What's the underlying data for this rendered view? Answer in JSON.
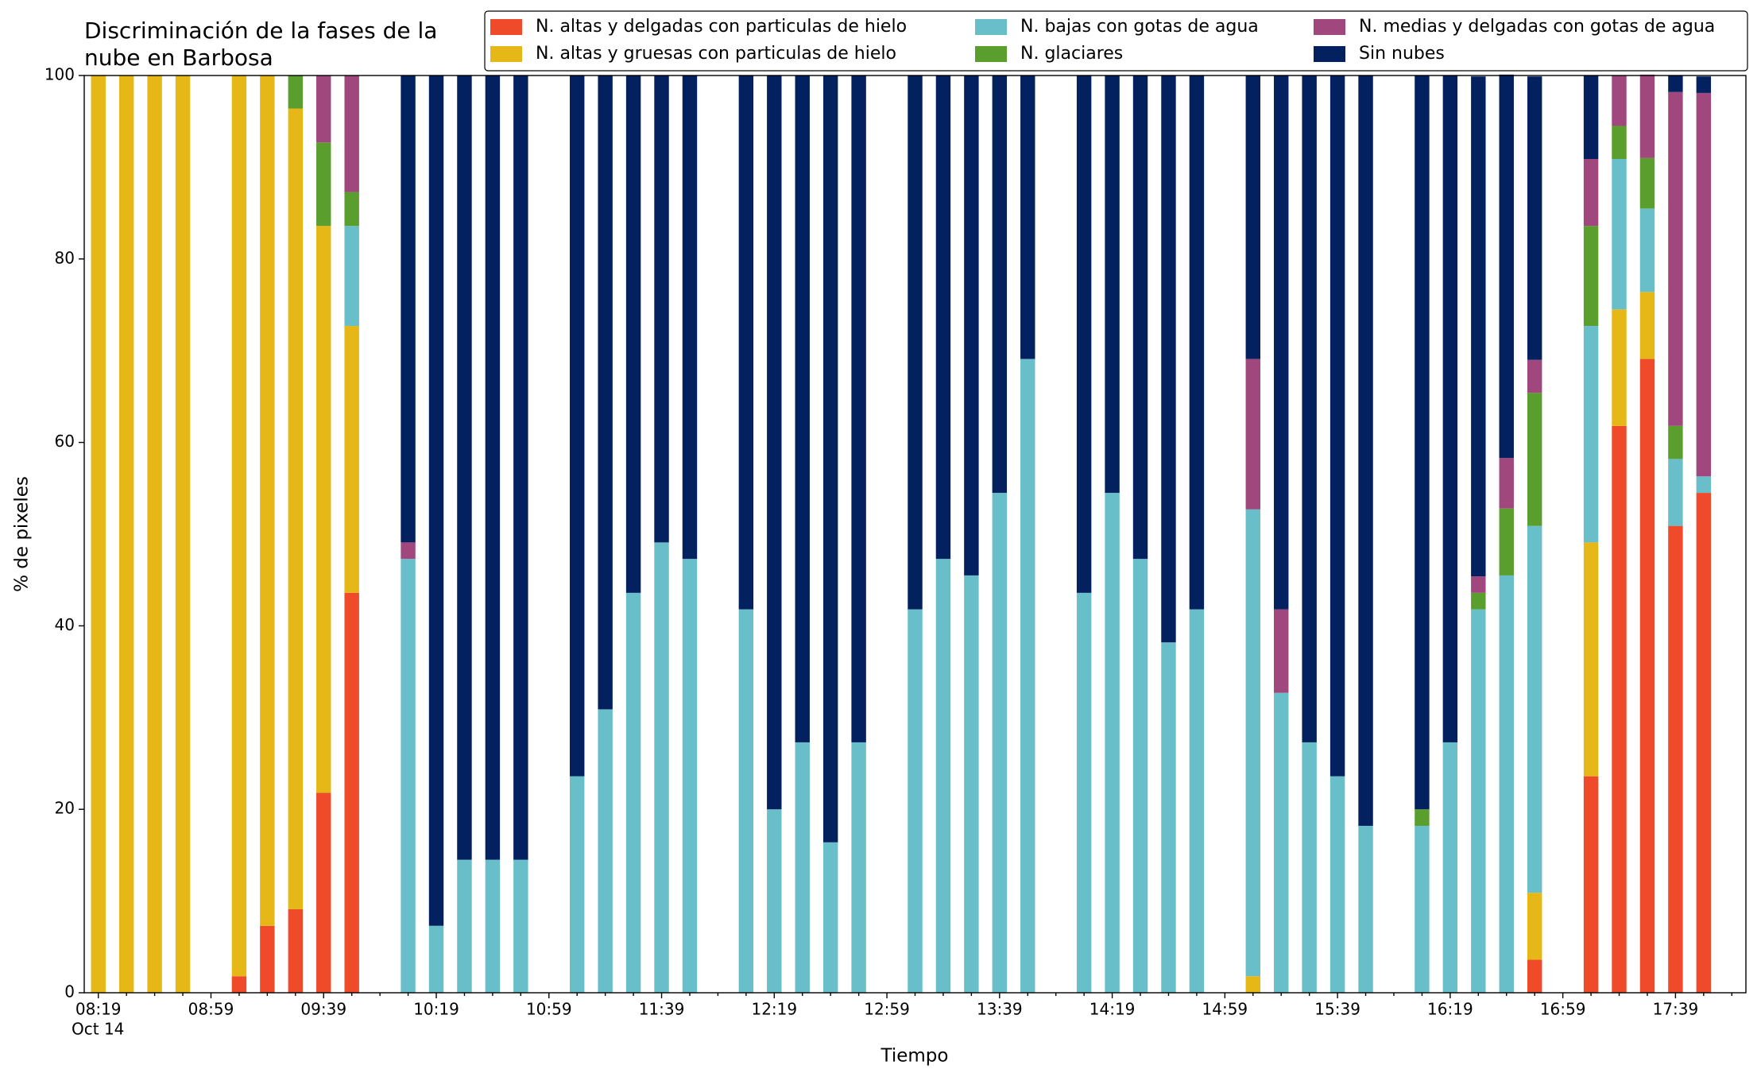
{
  "chart_data": {
    "type": "stacked_bar",
    "title": [
      "Discriminación de la fases de la",
      "nube en Barbosa"
    ],
    "x_label": "Tiempo",
    "y_label": "% de pixeles",
    "x_sublabel": "Oct 14",
    "categories": [
      "08:19",
      null,
      null,
      null,
      "08:59",
      null,
      null,
      null,
      "09:39",
      null,
      null,
      null,
      "10:19",
      null,
      null,
      null,
      "10:59",
      null,
      null,
      null,
      "11:39",
      null,
      null,
      null,
      "12:19",
      null,
      null,
      null,
      "12:59",
      null,
      null,
      null,
      "13:39",
      null,
      null,
      null,
      "14:19",
      null,
      null,
      null,
      "14:59",
      null,
      null,
      null,
      "15:39",
      null,
      null,
      null,
      "16:19",
      null,
      null,
      null,
      "16:59",
      null,
      null,
      null,
      "17:39",
      null,
      null
    ],
    "ylim": [
      0,
      100
    ],
    "yticks": [
      0,
      20,
      40,
      60,
      80,
      100
    ],
    "legend": "upper right",
    "series": [
      {
        "name": "N. altas y delgadas con particulas de hielo",
        "color": "#ef4b2a",
        "values": [
          0,
          0,
          0,
          0,
          null,
          1.8,
          7.3,
          9.1,
          21.8,
          43.6,
          null,
          0,
          0,
          0,
          0,
          0,
          null,
          0,
          0,
          0,
          0,
          0,
          null,
          0,
          0,
          0,
          0,
          0,
          null,
          0,
          0,
          0,
          0,
          0,
          null,
          0,
          0,
          0,
          0,
          0,
          null,
          0,
          0,
          0,
          0,
          0,
          null,
          0,
          0,
          0,
          0,
          3.6,
          null,
          23.6,
          61.8,
          69.1,
          50.9,
          54.5,
          null
        ]
      },
      {
        "name": "N. altas y gruesas con particulas de hielo",
        "color": "#e6b817",
        "values": [
          100,
          100,
          100,
          100,
          null,
          98.2,
          92.7,
          87.3,
          61.8,
          29.1,
          null,
          0,
          0,
          0,
          0,
          0,
          null,
          0,
          0,
          0,
          0,
          0,
          null,
          0,
          0,
          0,
          0,
          0,
          null,
          0,
          0,
          0,
          0,
          0,
          null,
          0,
          0,
          0,
          0,
          0,
          null,
          1.8,
          0,
          0,
          0,
          0,
          null,
          0,
          0,
          0,
          0,
          7.3,
          null,
          25.5,
          12.7,
          7.3,
          0,
          0,
          null
        ]
      },
      {
        "name": "N. bajas con gotas de agua",
        "color": "#68bfca",
        "values": [
          0,
          0,
          0,
          0,
          null,
          0,
          0,
          0,
          0,
          10.9,
          null,
          47.3,
          7.3,
          14.5,
          14.5,
          14.5,
          null,
          23.6,
          30.9,
          43.6,
          49.1,
          47.3,
          null,
          41.8,
          20,
          27.3,
          16.4,
          27.3,
          null,
          41.8,
          47.3,
          45.5,
          54.5,
          69.1,
          null,
          43.6,
          54.5,
          47.3,
          38.2,
          41.8,
          null,
          50.9,
          32.7,
          27.3,
          23.6,
          18.2,
          null,
          18.2,
          27.3,
          41.8,
          45.5,
          40,
          null,
          23.6,
          16.4,
          9.1,
          7.3,
          1.8,
          null
        ]
      },
      {
        "name": "N. glaciares",
        "color": "#5a9e2d",
        "values": [
          0,
          0,
          0,
          0,
          null,
          0,
          0,
          3.6,
          9.1,
          3.7,
          null,
          0,
          0,
          0,
          0,
          0,
          null,
          0,
          0,
          0,
          0,
          0,
          null,
          0,
          0,
          0,
          0,
          0,
          null,
          0,
          0,
          0,
          0,
          0,
          null,
          0,
          0,
          0,
          0,
          0,
          null,
          0,
          0,
          0,
          0,
          0,
          null,
          1.8,
          0,
          1.8,
          7.3,
          14.5,
          null,
          10.9,
          3.6,
          5.5,
          3.6,
          0,
          null
        ]
      },
      {
        "name": "N. medias y delgadas con gotas de agua",
        "color": "#a0487e",
        "values": [
          0,
          0,
          0,
          0,
          null,
          0,
          0,
          0,
          7.3,
          12.7,
          null,
          1.8,
          0,
          0,
          0,
          0,
          null,
          0,
          0,
          0,
          0,
          0,
          null,
          0,
          0,
          0,
          0,
          0,
          null,
          0,
          0,
          0,
          0,
          0,
          null,
          0,
          0,
          0,
          0,
          0,
          null,
          16.4,
          9.1,
          0,
          0,
          0,
          null,
          0,
          0,
          1.8,
          5.5,
          3.6,
          null,
          7.3,
          5.5,
          9.1,
          36.4,
          41.8,
          null
        ]
      },
      {
        "name": "Sin nubes",
        "color": "#03215f",
        "values": [
          0,
          0,
          0,
          0,
          null,
          0,
          0,
          0,
          0,
          0,
          null,
          50.9,
          92.7,
          85.5,
          85.5,
          85.5,
          null,
          76.4,
          69.1,
          56.4,
          50.9,
          52.7,
          null,
          58.2,
          80,
          72.7,
          83.6,
          72.7,
          null,
          58.2,
          52.7,
          54.5,
          45.5,
          30.9,
          null,
          56.4,
          45.5,
          52.7,
          61.8,
          58.2,
          null,
          30.9,
          58.2,
          72.7,
          76.4,
          81.8,
          null,
          80,
          72.7,
          54.5,
          41.8,
          30.9,
          null,
          9.1,
          0,
          0,
          1.8,
          1.8,
          null
        ]
      }
    ]
  }
}
